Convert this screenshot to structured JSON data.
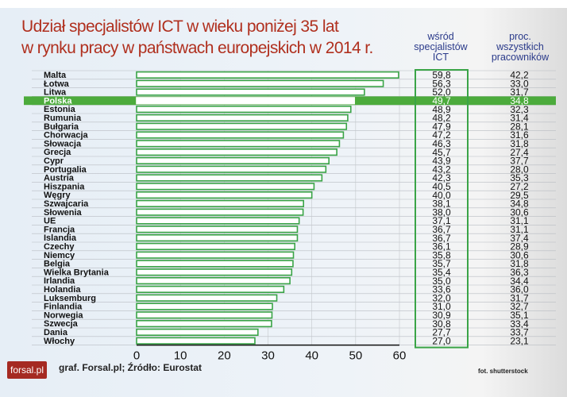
{
  "title_line1": "Udział specjalistów ICT w wieku poniżej 35 lat",
  "title_line2": "w rynku pracy w państwach europejskich w 2014 r.",
  "col1_header": [
    "wśród",
    "specjalistów",
    "ICT"
  ],
  "col2_header": [
    "proc.",
    "wszystkich",
    "pracowników"
  ],
  "source": "graf. Forsal.pl; Źródło: Eurostat",
  "photo_credit": "fot. shutterstock",
  "logo": "forsal.pl",
  "colors": {
    "title": "#b0301f",
    "bar": "#3aa447",
    "highlight": "#4cab3c",
    "header": "#2a3a8a"
  },
  "chart_data": {
    "type": "bar",
    "orientation": "horizontal",
    "xlim": [
      0,
      60
    ],
    "xticks": [
      0,
      10,
      20,
      30,
      40,
      50,
      60
    ],
    "grid": true,
    "highlight": "Polska",
    "categories": [
      "Malta",
      "Łotwa",
      "Litwa",
      "Polska",
      "Estonia",
      "Rumunia",
      "Bułgaria",
      "Chorwacja",
      "Słowacja",
      "Grecja",
      "Cypr",
      "Portugalia",
      "Austria",
      "Hiszpania",
      "Węgry",
      "Szwajcaria",
      "Słowenia",
      "UE",
      "Francja",
      "Islandia",
      "Czechy",
      "Niemcy",
      "Belgia",
      "Wielka Brytania",
      "Irlandia",
      "Holandia",
      "Luksemburg",
      "Finlandia",
      "Norwegia",
      "Szwecja",
      "Dania",
      "Włochy"
    ],
    "ict": [
      "59,8",
      "56,3",
      "52,0",
      "49,7",
      "48,9",
      "48,2",
      "47,9",
      "47,2",
      "46,3",
      "45,7",
      "43,9",
      "43,2",
      "42,3",
      "40,5",
      "40,0",
      "38,1",
      "38,0",
      "37,1",
      "36,7",
      "36,7",
      "36,1",
      "35,8",
      "35,7",
      "35,4",
      "35,0",
      "33,6",
      "32,0",
      "31,0",
      "30,9",
      "30,8",
      "27,7",
      "27,0"
    ],
    "all_workers": [
      "42,2",
      "33,0",
      "31,7",
      "34,8",
      "32,3",
      "31,4",
      "28,1",
      "31,6",
      "31,8",
      "27,4",
      "37,7",
      "28,0",
      "35,3",
      "27,2",
      "29,5",
      "34,8",
      "30,6",
      "31,1",
      "31,1",
      "37,4",
      "28,9",
      "30,6",
      "31,8",
      "36,3",
      "34,4",
      "36,0",
      "31,7",
      "32,7",
      "35,1",
      "33,4",
      "33,7",
      "23,1"
    ]
  }
}
